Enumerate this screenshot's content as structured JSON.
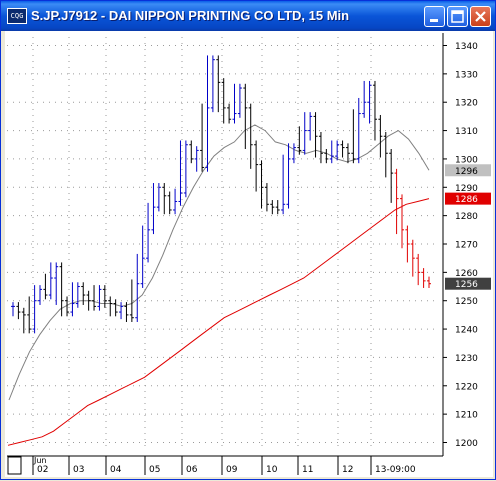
{
  "window": {
    "title": "S.JP.J7912 - DAI NIPPON PRINTING CO LTD, 15 Min",
    "icon_name": "chart-app-icon",
    "icon_text": "CQG",
    "buttons": [
      "minimize-icon",
      "maximize-icon",
      "close-icon"
    ]
  },
  "chart_data": {
    "type": "line",
    "title": "S.JP.J7912 - DAI NIPPON PRINTING CO LTD, 15 Min",
    "y_ticks": [
      1200,
      1210,
      1220,
      1230,
      1240,
      1250,
      1260,
      1270,
      1280,
      1290,
      1300,
      1310,
      1320,
      1330,
      1340
    ],
    "ylim": [
      1197,
      1343
    ],
    "x_ticks": [
      "02",
      "03",
      "04",
      "05",
      "06",
      "09",
      "10",
      "11",
      "12",
      "13-09:00"
    ],
    "month_label": "Jun",
    "price_labels": [
      {
        "value": 1296,
        "text": "1296",
        "color": "#c0c0c0",
        "text_color": "#000000"
      },
      {
        "value": 1286,
        "text": "1286",
        "color": "#e00000",
        "text_color": "#ffffff"
      },
      {
        "value": 1256,
        "text": "1256",
        "color": "#404040",
        "text_color": "#ffffff"
      }
    ],
    "series": [
      {
        "name": "",
        "kind": "moving-average",
        "color": "#808080",
        "values": [
          1215,
          1224,
          1232,
          1238,
          1243,
          1247,
          1249,
          1250,
          1250,
          1249,
          1249,
          1248,
          1249,
          1252,
          1258,
          1266,
          1275,
          1283,
          1290,
          1296,
          1301,
          1304,
          1306,
          1310,
          1312,
          1310,
          1306,
          1305,
          1303,
          1302,
          1303,
          1302,
          1300,
          1299,
          1300,
          1302,
          1305,
          1308,
          1310,
          1307,
          1302,
          1296
        ]
      },
      {
        "name": "",
        "kind": "moving-average",
        "color": "#e00000",
        "values": [
          1199,
          1200,
          1201,
          1202,
          1204,
          1207,
          1210,
          1213,
          1215,
          1217,
          1219,
          1221,
          1223,
          1226,
          1229,
          1232,
          1235,
          1238,
          1241,
          1244,
          1246,
          1248,
          1250,
          1252,
          1254,
          1256,
          1258,
          1261,
          1264,
          1267,
          1270,
          1273,
          1276,
          1279,
          1282,
          1284,
          1285,
          1286
        ]
      },
      {
        "name": "",
        "kind": "price-bars",
        "values": [
          1248,
          1246,
          1245,
          1240,
          1250,
          1254,
          1252,
          1258,
          1262,
          1250,
          1246,
          1249,
          1255,
          1252,
          1250,
          1248,
          1254,
          1250,
          1249,
          1246,
          1248,
          1245,
          1244,
          1256,
          1265,
          1275,
          1283,
          1290,
          1287,
          1282,
          1285,
          1288,
          1305,
          1300,
          1303,
          1297,
          1318,
          1335,
          1327,
          1318,
          1314,
          1316,
          1325,
          1318,
          1305,
          1298,
          1290,
          1284,
          1283,
          1282,
          1284,
          1300,
          1304,
          1303,
          1310,
          1315,
          1308,
          1302,
          1300,
          1301,
          1305,
          1304,
          1302,
          1300,
          1316,
          1320,
          1326,
          1314,
          1308,
          1302,
          1295,
          1286,
          1275,
          1270,
          1265,
          1260,
          1257,
          1256
        ],
        "up_color": "#0000c8",
        "down_color": "#000000",
        "last_color": "#e00000"
      }
    ],
    "grid": true,
    "legend": "none"
  }
}
